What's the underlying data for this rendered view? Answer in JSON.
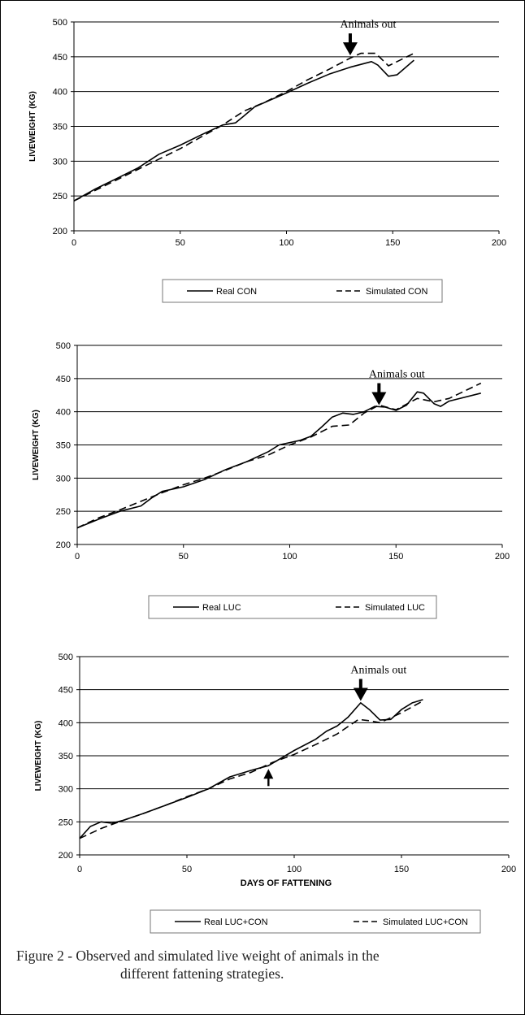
{
  "charts": [
    {
      "annotation": "Animals out",
      "legend": [
        "Real CON",
        "Simulated CON"
      ]
    },
    {
      "annotation": "Animals out",
      "legend": [
        "Real LUC",
        "Simulated LUC"
      ]
    },
    {
      "annotation": "Animals out",
      "legend": [
        "Real LUC+CON",
        "Simulated LUC+CON"
      ]
    }
  ],
  "caption": {
    "line1": "Figure 2 - Observed and simulated live weight of animals in the",
    "line2": "different fattening strategies."
  },
  "chart_data": [
    {
      "type": "line",
      "xlabel": "",
      "ylabel": "LIVEWEIGHT (KG)",
      "xlim": [
        0,
        200
      ],
      "ylim": [
        200,
        500
      ],
      "xticks": [
        0,
        50,
        100,
        150,
        200
      ],
      "yticks": [
        200,
        250,
        300,
        350,
        400,
        450,
        500
      ],
      "grid": "horizontal",
      "legend_position": "bottom",
      "annotation_arrows": [
        {
          "x": 130,
          "y": 452,
          "direction": "down",
          "label": "Animals out"
        }
      ],
      "series": [
        {
          "name": "Real CON",
          "style": "solid",
          "points": [
            [
              0,
              243
            ],
            [
              10,
              260
            ],
            [
              20,
              275
            ],
            [
              30,
              290
            ],
            [
              40,
              310
            ],
            [
              50,
              323
            ],
            [
              60,
              338
            ],
            [
              70,
              352
            ],
            [
              76,
              355
            ],
            [
              80,
              365
            ],
            [
              85,
              378
            ],
            [
              100,
              398
            ],
            [
              110,
              412
            ],
            [
              120,
              425
            ],
            [
              130,
              435
            ],
            [
              140,
              443
            ],
            [
              143,
              438
            ],
            [
              148,
              422
            ],
            [
              152,
              424
            ],
            [
              160,
              445
            ]
          ]
        },
        {
          "name": "Simulated CON",
          "style": "dashed",
          "points": [
            [
              0,
              243
            ],
            [
              10,
              258
            ],
            [
              20,
              273
            ],
            [
              30,
              288
            ],
            [
              40,
              303
            ],
            [
              50,
              318
            ],
            [
              60,
              335
            ],
            [
              70,
              352
            ],
            [
              80,
              372
            ],
            [
              90,
              385
            ],
            [
              100,
              400
            ],
            [
              110,
              417
            ],
            [
              120,
              432
            ],
            [
              130,
              448
            ],
            [
              135,
              455
            ],
            [
              142,
              455
            ],
            [
              148,
              437
            ],
            [
              150,
              440
            ],
            [
              160,
              455
            ]
          ]
        }
      ]
    },
    {
      "type": "line",
      "xlabel": "",
      "ylabel": "LIVEWEIGHT (KG)",
      "xlim": [
        0,
        200
      ],
      "ylim": [
        200,
        500
      ],
      "xticks": [
        0,
        50,
        100,
        150,
        200
      ],
      "yticks": [
        200,
        250,
        300,
        350,
        400,
        450,
        500
      ],
      "grid": "horizontal",
      "legend_position": "bottom",
      "annotation_arrows": [
        {
          "x": 142,
          "y": 410,
          "direction": "down",
          "label": "Animals out"
        }
      ],
      "series": [
        {
          "name": "Real LUC",
          "style": "solid",
          "points": [
            [
              0,
              225
            ],
            [
              10,
              238
            ],
            [
              20,
              250
            ],
            [
              30,
              258
            ],
            [
              35,
              270
            ],
            [
              40,
              280
            ],
            [
              50,
              287
            ],
            [
              60,
              298
            ],
            [
              70,
              313
            ],
            [
              80,
              325
            ],
            [
              90,
              340
            ],
            [
              95,
              350
            ],
            [
              105,
              357
            ],
            [
              110,
              363
            ],
            [
              115,
              377
            ],
            [
              120,
              392
            ],
            [
              125,
              398
            ],
            [
              130,
              396
            ],
            [
              135,
              400
            ],
            [
              140,
              408
            ],
            [
              145,
              407
            ],
            [
              150,
              402
            ],
            [
              155,
              410
            ],
            [
              160,
              430
            ],
            [
              163,
              428
            ],
            [
              168,
              412
            ],
            [
              171,
              408
            ],
            [
              175,
              416
            ],
            [
              190,
              428
            ]
          ]
        },
        {
          "name": "Simulated LUC",
          "style": "dashed",
          "points": [
            [
              0,
              225
            ],
            [
              10,
              240
            ],
            [
              20,
              252
            ],
            [
              30,
              265
            ],
            [
              40,
              278
            ],
            [
              50,
              290
            ],
            [
              60,
              300
            ],
            [
              70,
              312
            ],
            [
              80,
              325
            ],
            [
              90,
              335
            ],
            [
              100,
              350
            ],
            [
              110,
              362
            ],
            [
              120,
              378
            ],
            [
              128,
              380
            ],
            [
              135,
              398
            ],
            [
              142,
              410
            ],
            [
              150,
              403
            ],
            [
              160,
              420
            ],
            [
              168,
              415
            ],
            [
              175,
              420
            ],
            [
              190,
              443
            ]
          ]
        }
      ]
    },
    {
      "type": "line",
      "xlabel": "DAYS OF FATTENING",
      "ylabel": "LIVEWEIGHT (KG)",
      "xlim": [
        0,
        200
      ],
      "ylim": [
        200,
        500
      ],
      "xticks": [
        0,
        50,
        100,
        150,
        200
      ],
      "yticks": [
        200,
        250,
        300,
        350,
        400,
        450,
        500
      ],
      "grid": "horizontal",
      "legend_position": "bottom",
      "annotation_arrows": [
        {
          "x": 131,
          "y": 433,
          "direction": "down",
          "label": "Animals out"
        },
        {
          "x": 88,
          "y": 330,
          "direction": "up",
          "label": ""
        }
      ],
      "series": [
        {
          "name": "Real LUC+CON",
          "style": "solid",
          "points": [
            [
              0,
              225
            ],
            [
              5,
              243
            ],
            [
              10,
              250
            ],
            [
              15,
              248
            ],
            [
              20,
              252
            ],
            [
              30,
              263
            ],
            [
              40,
              275
            ],
            [
              50,
              287
            ],
            [
              60,
              300
            ],
            [
              70,
              318
            ],
            [
              80,
              328
            ],
            [
              88,
              335
            ],
            [
              100,
              358
            ],
            [
              110,
              375
            ],
            [
              115,
              387
            ],
            [
              120,
              395
            ],
            [
              125,
              408
            ],
            [
              131,
              430
            ],
            [
              135,
              420
            ],
            [
              140,
              404
            ],
            [
              145,
              405
            ],
            [
              150,
              420
            ],
            [
              155,
              430
            ],
            [
              160,
              435
            ]
          ]
        },
        {
          "name": "Simulated LUC+CON",
          "style": "dashed",
          "points": [
            [
              0,
              225
            ],
            [
              10,
              240
            ],
            [
              20,
              252
            ],
            [
              30,
              263
            ],
            [
              40,
              275
            ],
            [
              50,
              288
            ],
            [
              60,
              300
            ],
            [
              70,
              315
            ],
            [
              80,
              325
            ],
            [
              90,
              340
            ],
            [
              100,
              352
            ],
            [
              110,
              367
            ],
            [
              120,
              383
            ],
            [
              130,
              405
            ],
            [
              135,
              403
            ],
            [
              140,
              400
            ],
            [
              150,
              415
            ],
            [
              160,
              433
            ]
          ]
        }
      ]
    }
  ]
}
